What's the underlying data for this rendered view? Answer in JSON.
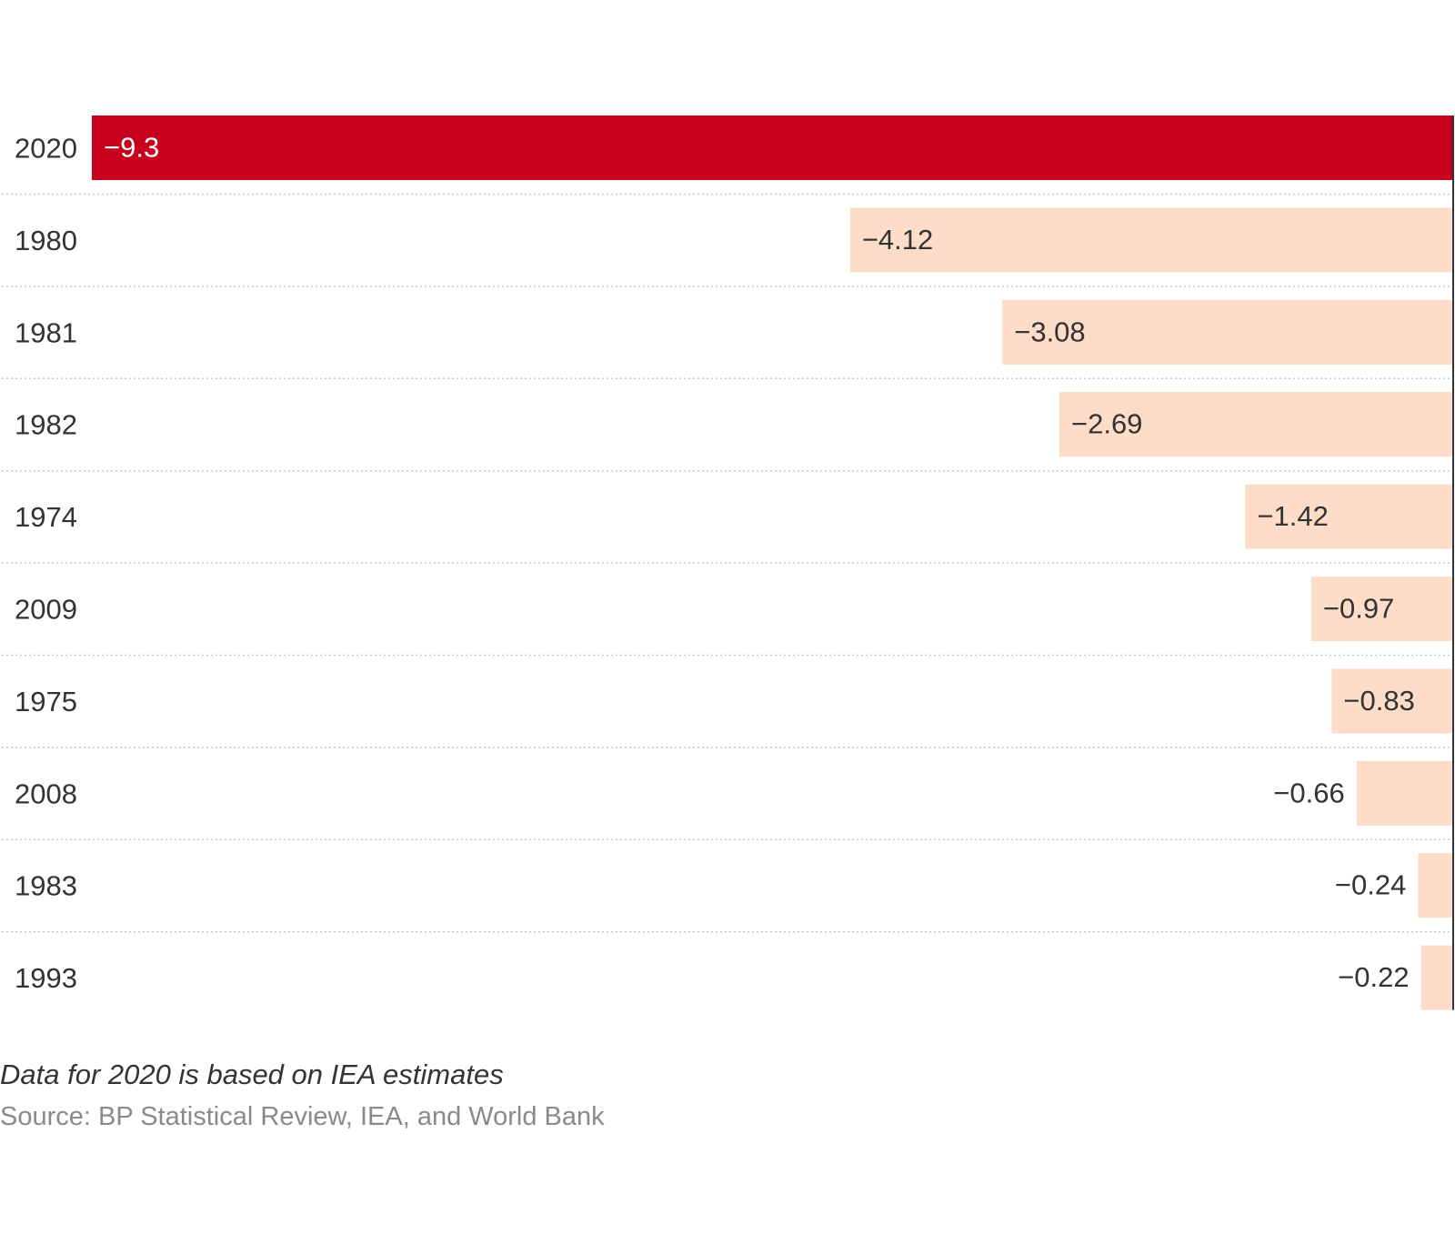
{
  "chart_data": {
    "type": "bar",
    "orientation": "horizontal",
    "categories": [
      "2020",
      "1980",
      "1981",
      "1982",
      "1974",
      "2009",
      "1975",
      "2008",
      "1983",
      "1993"
    ],
    "values": [
      -9.3,
      -4.12,
      -3.08,
      -2.69,
      -1.42,
      -0.97,
      -0.83,
      -0.66,
      -0.24,
      -0.22
    ],
    "value_labels": [
      "−9.3",
      "−4.12",
      "−3.08",
      "−2.69",
      "−1.42",
      "−0.97",
      "−0.83",
      "−0.66",
      "−0.24",
      "−0.22"
    ],
    "xlim": [
      -9.3,
      0
    ],
    "highlight_category": "2020",
    "colors": {
      "highlight": "#c8001e",
      "default": "#fddcc8",
      "baseline": "#333333",
      "gridline": "#c8c8c8",
      "label_dark": "#333333",
      "label_on_highlight": "#ffffff"
    },
    "grid": true
  },
  "note": "Data for 2020 is based on IEA estimates",
  "source": "Source: BP Statistical Review, IEA, and World Bank"
}
